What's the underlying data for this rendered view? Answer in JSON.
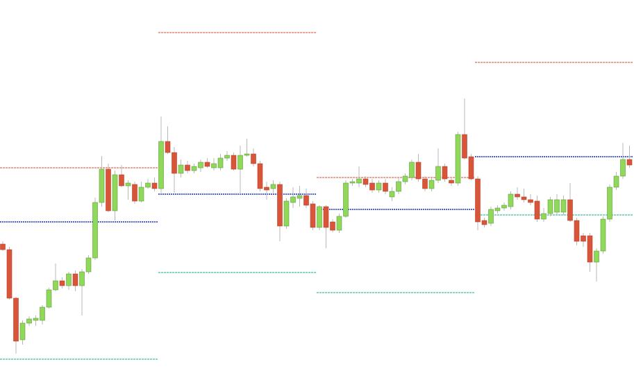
{
  "chart_data": {
    "type": "candlestick",
    "ylim": [
      0,
      561
    ],
    "up_color": "#8fd85a",
    "down_color": "#d8553a",
    "wick_color": "#b8b8b8",
    "open": [
      209,
      201,
      131,
      71,
      95,
      99,
      99,
      118,
      143,
      156,
      149,
      166,
      149,
      169,
      189,
      269,
      317,
      257,
      309,
      293,
      295,
      271,
      291,
      297,
      289,
      357,
      341,
      311,
      323,
      315,
      319,
      327,
      319,
      319,
      333,
      337,
      317,
      337,
      339,
      325,
      291,
      289,
      295,
      235,
      269,
      275,
      279,
      267,
      233,
      263,
      241,
      229,
      249,
      297,
      297,
      303,
      297,
      287,
      297,
      277,
      285,
      299,
      305,
      327,
      303,
      289,
      301,
      321,
      301,
      297,
      367,
      335,
      303,
      243,
      239,
      257,
      261,
      263,
      281,
      277,
      273,
      271,
      245,
      253,
      255,
      255,
      273,
      243,
      221,
      221,
      183,
      199,
      245,
      291,
      307,
      331
    ],
    "high": [
      213,
      205,
      133,
      99,
      105,
      106,
      121,
      146,
      181,
      161,
      169,
      171,
      173,
      193,
      276,
      336,
      325,
      315,
      323,
      301,
      299,
      299,
      303,
      305,
      393,
      379,
      349,
      331,
      329,
      325,
      331,
      333,
      333,
      339,
      343,
      341,
      351,
      361,
      347,
      329,
      299,
      301,
      299,
      275,
      291,
      293,
      289,
      271,
      265,
      265,
      245,
      253,
      301,
      303,
      321,
      307,
      303,
      301,
      303,
      291,
      305,
      311,
      331,
      339,
      307,
      305,
      347,
      325,
      305,
      371,
      419,
      339,
      307,
      247,
      263,
      265,
      269,
      285,
      291,
      289,
      281,
      279,
      261,
      277,
      281,
      279,
      297,
      247,
      225,
      225,
      203,
      249,
      295,
      313,
      355,
      351
    ],
    "low": [
      199,
      129,
      51,
      64,
      91,
      91,
      93,
      116,
      141,
      145,
      143,
      141,
      106,
      166,
      186,
      263,
      255,
      243,
      291,
      273,
      267,
      269,
      289,
      285,
      283,
      339,
      283,
      305,
      311,
      311,
      313,
      319,
      315,
      315,
      329,
      315,
      281,
      335,
      321,
      285,
      273,
      283,
      213,
      231,
      261,
      263,
      261,
      229,
      229,
      203,
      226,
      225,
      247,
      293,
      291,
      291,
      283,
      283,
      281,
      271,
      281,
      295,
      301,
      299,
      285,
      285,
      297,
      299,
      293,
      293,
      331,
      301,
      229,
      233,
      235,
      253,
      257,
      259,
      273,
      269,
      265,
      241,
      241,
      249,
      251,
      251,
      241,
      207,
      205,
      169,
      155,
      195,
      241,
      287,
      303,
      319
    ],
    "close": [
      201,
      131,
      69,
      95,
      101,
      102,
      118,
      143,
      156,
      149,
      166,
      149,
      169,
      189,
      269,
      317,
      257,
      309,
      293,
      297,
      271,
      291,
      297,
      289,
      357,
      341,
      311,
      323,
      315,
      321,
      327,
      321,
      325,
      333,
      337,
      317,
      337,
      339,
      325,
      289,
      287,
      295,
      235,
      271,
      277,
      279,
      265,
      233,
      263,
      233,
      229,
      249,
      297,
      299,
      303,
      295,
      287,
      297,
      285,
      285,
      299,
      307,
      327,
      303,
      289,
      301,
      321,
      303,
      297,
      367,
      333,
      303,
      241,
      237,
      259,
      261,
      265,
      281,
      277,
      273,
      269,
      245,
      253,
      273,
      273,
      273,
      243,
      213,
      213,
      183,
      199,
      245,
      291,
      307,
      331,
      323
    ],
    "level_colors": [
      "#e46a55",
      "#4a5de6",
      "#3dbf9e"
    ],
    "periods": [
      {
        "size": 24,
        "levels": [
          319,
          241,
          43
        ]
      },
      {
        "size": 24,
        "levels": [
          514,
          281,
          168
        ]
      },
      {
        "size": 24,
        "levels": [
          305,
          259,
          139
        ]
      },
      {
        "size": 24,
        "levels": [
          471,
          335,
          251
        ]
      }
    ]
  }
}
